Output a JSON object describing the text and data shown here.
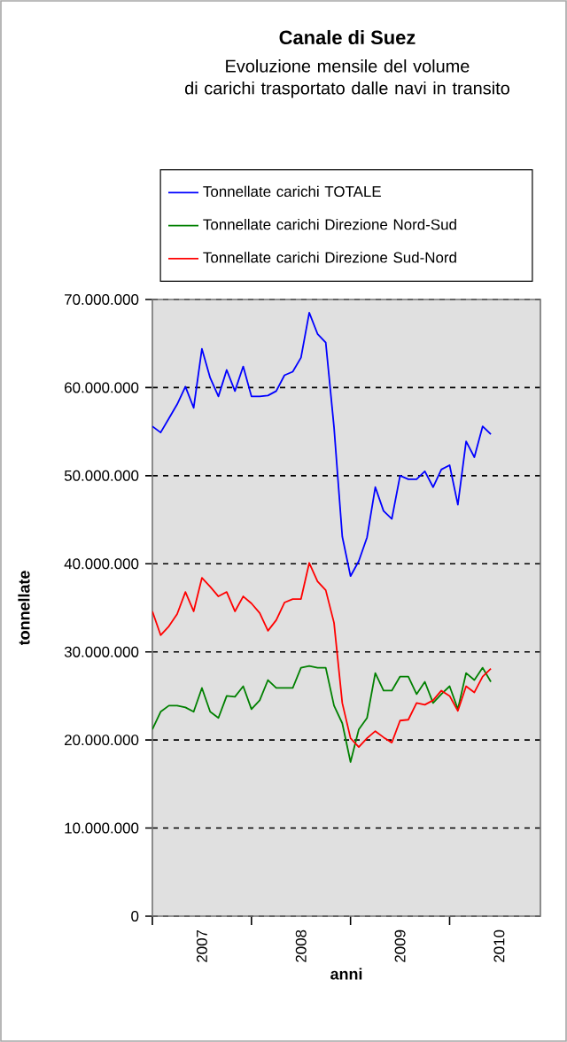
{
  "chart_data": {
    "type": "line",
    "title": "Canale di Suez",
    "subtitle": "Evoluzione mensile del volume\ndi carichi trasportato dalle navi in transito",
    "xlabel": "anni",
    "ylabel": "tonnellate",
    "x": [
      "2007-01",
      "2007-02",
      "2007-03",
      "2007-04",
      "2007-05",
      "2007-06",
      "2007-07",
      "2007-08",
      "2007-09",
      "2007-10",
      "2007-11",
      "2007-12",
      "2008-01",
      "2008-02",
      "2008-03",
      "2008-04",
      "2008-05",
      "2008-06",
      "2008-07",
      "2008-08",
      "2008-09",
      "2008-10",
      "2008-11",
      "2008-12",
      "2009-01",
      "2009-02",
      "2009-03",
      "2009-04",
      "2009-05",
      "2009-06",
      "2009-07",
      "2009-08",
      "2009-09",
      "2009-10",
      "2009-11",
      "2009-12",
      "2010-01",
      "2010-02",
      "2010-03",
      "2010-04",
      "2010-05",
      "2010-06"
    ],
    "series": [
      {
        "name": "Tonnellate carichi TOTALE",
        "color": "#0000ff",
        "values": [
          55600000,
          54900000,
          56500000,
          58100000,
          60100000,
          57700000,
          64400000,
          61100000,
          59000000,
          62000000,
          59600000,
          62400000,
          59000000,
          59000000,
          59100000,
          59600000,
          61400000,
          61800000,
          63400000,
          68500000,
          66100000,
          65100000,
          55500000,
          43100000,
          38600000,
          40300000,
          43000000,
          48700000,
          46000000,
          45100000,
          50000000,
          49600000,
          49600000,
          50500000,
          48700000,
          50700000,
          51200000,
          46700000,
          53900000,
          52100000,
          55600000,
          54700000
        ]
      },
      {
        "name": "Tonnellate carichi Direzione Nord-Sud",
        "color": "#008000",
        "values": [
          21200000,
          23200000,
          23900000,
          23900000,
          23700000,
          23200000,
          25900000,
          23200000,
          22500000,
          25000000,
          24900000,
          26100000,
          23500000,
          24500000,
          26800000,
          25900000,
          25900000,
          25900000,
          28200000,
          28400000,
          28200000,
          28200000,
          23900000,
          21900000,
          17500000,
          21200000,
          22500000,
          27600000,
          25600000,
          25600000,
          27200000,
          27200000,
          25200000,
          26600000,
          24200000,
          25200000,
          26100000,
          23500000,
          27600000,
          26800000,
          28200000,
          26600000
        ]
      },
      {
        "name": "Tonnellate carichi Direzione Sud-Nord",
        "color": "#ff0000",
        "values": [
          34600000,
          31900000,
          32900000,
          34300000,
          36800000,
          34600000,
          38400000,
          37400000,
          36300000,
          36800000,
          34600000,
          36300000,
          35500000,
          34400000,
          32400000,
          33600000,
          35600000,
          36000000,
          36000000,
          40100000,
          38000000,
          37000000,
          33300000,
          24200000,
          20200000,
          19200000,
          20200000,
          21000000,
          20300000,
          19700000,
          22200000,
          22300000,
          24200000,
          24000000,
          24500000,
          25600000,
          25000000,
          23300000,
          26100000,
          25400000,
          27200000,
          28100000
        ]
      }
    ],
    "xlim": [
      "2007-01",
      "2010-12"
    ],
    "xticks": [
      {
        "value": "2007-01",
        "label": null
      },
      {
        "value": "2007-07",
        "label": "2007"
      },
      {
        "value": "2008-01",
        "label": null
      },
      {
        "value": "2008-07",
        "label": "2008"
      },
      {
        "value": "2009-01",
        "label": null
      },
      {
        "value": "2009-07",
        "label": "2009"
      },
      {
        "value": "2010-01",
        "label": null
      },
      {
        "value": "2010-07",
        "label": "2010"
      }
    ],
    "ylim": [
      0,
      70000000
    ],
    "yticks": [
      0,
      {
        "value": 10000000,
        "label": "10.000.000"
      },
      {
        "value": 20000000,
        "label": "20.000.000"
      },
      {
        "value": 30000000,
        "label": "30.000.000"
      },
      {
        "value": 40000000,
        "label": "40.000.000"
      },
      {
        "value": 50000000,
        "label": "50.000.000"
      },
      {
        "value": 60000000,
        "label": "60.000.000"
      },
      {
        "value": 70000000,
        "label": "70.000.000"
      }
    ],
    "grid": "y",
    "legend": "top",
    "marker": "none",
    "line_style": "solid"
  }
}
